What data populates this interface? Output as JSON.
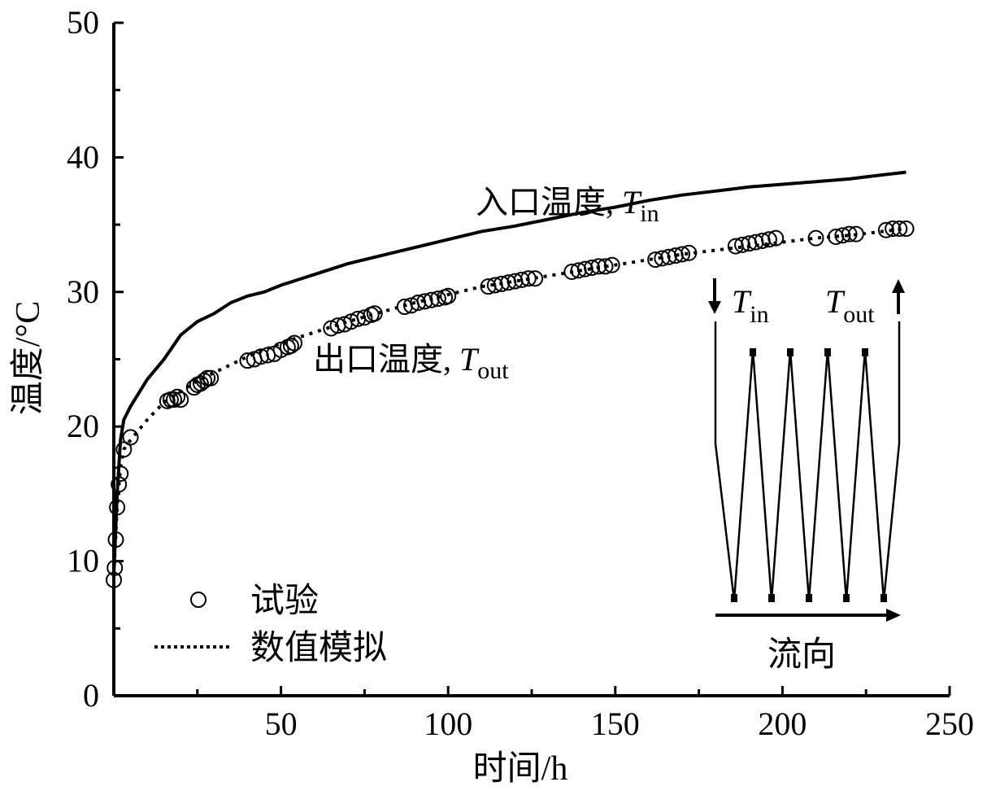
{
  "chart_data": {
    "type": "line",
    "xlabel": "时间/h",
    "ylabel": "温度/°C",
    "xlim": [
      0,
      250
    ],
    "ylim": [
      0,
      50
    ],
    "xticks": [
      "50",
      "100",
      "150",
      "200",
      "250"
    ],
    "yticks": [
      "0",
      "10",
      "20",
      "30",
      "40",
      "50"
    ],
    "grid": false,
    "legend": {
      "position": "bottom-left",
      "entries": [
        "试验",
        "数值模拟"
      ]
    },
    "annotations": {
      "inlet": {
        "text": "入口温度, ",
        "var": "T",
        "sub": "in"
      },
      "outlet": {
        "text": "出口温度, ",
        "var": "T",
        "sub": "out"
      }
    },
    "inset": {
      "label_in_var": "T",
      "label_in_sub": "in",
      "label_out_var": "T",
      "label_out_sub": "out",
      "flow_label": "流向"
    },
    "series": [
      {
        "name": "入口温度",
        "style": "solid",
        "x": [
          0,
          1,
          2,
          3,
          5,
          10,
          15,
          20,
          25,
          30,
          35,
          40,
          45,
          50,
          60,
          70,
          80,
          90,
          100,
          110,
          120,
          130,
          140,
          150,
          160,
          170,
          180,
          190,
          200,
          210,
          220,
          230,
          237
        ],
        "y": [
          9,
          15,
          19,
          20.5,
          21.5,
          23.5,
          25,
          26.8,
          27.8,
          28.4,
          29.2,
          29.7,
          30,
          30.5,
          31.3,
          32.1,
          32.7,
          33.3,
          33.9,
          34.5,
          34.9,
          35.4,
          35.9,
          36.3,
          36.8,
          37.2,
          37.5,
          37.8,
          38,
          38.2,
          38.4,
          38.7,
          38.9
        ]
      },
      {
        "name": "出口温度",
        "style": "dotted",
        "x": [
          0,
          1,
          2,
          3,
          5,
          10,
          15,
          20,
          25,
          30,
          35,
          40,
          45,
          50,
          60,
          70,
          80,
          90,
          100,
          110,
          120,
          130,
          140,
          150,
          160,
          170,
          180,
          190,
          200,
          210,
          220,
          230,
          237
        ],
        "y": [
          9,
          14,
          17,
          18.3,
          19,
          20.5,
          21.8,
          22.6,
          23.4,
          24,
          24.6,
          25.2,
          25.7,
          26.2,
          27,
          27.8,
          28.5,
          29.2,
          29.8,
          30.4,
          30.8,
          31.2,
          31.6,
          32,
          32.4,
          32.8,
          33.1,
          33.4,
          33.7,
          34,
          34.2,
          34.5,
          34.7
        ]
      },
      {
        "name": "试验",
        "style": "markers",
        "x": [
          0,
          0.3,
          0.6,
          1,
          1.5,
          2,
          3,
          5,
          16,
          17,
          18,
          19,
          20,
          24,
          25,
          26,
          27,
          28,
          29,
          40,
          42,
          44,
          46,
          48,
          50,
          52,
          53,
          54,
          65,
          67,
          69,
          71,
          73,
          75,
          77,
          78,
          87,
          89,
          91,
          93,
          95,
          97,
          99,
          100,
          112,
          114,
          116,
          118,
          120,
          122,
          124,
          126,
          137,
          139,
          141,
          143,
          145,
          147,
          149,
          162,
          164,
          166,
          168,
          170,
          172,
          186,
          188,
          190,
          192,
          194,
          196,
          198,
          210,
          216,
          218,
          220,
          222,
          231,
          233,
          235,
          237
        ],
        "y": [
          8.6,
          9.5,
          11.6,
          14,
          15.7,
          16.5,
          18.3,
          19.2,
          21.9,
          22.0,
          22.0,
          22.2,
          22.0,
          22.9,
          23.1,
          23.2,
          23.4,
          23.6,
          23.6,
          24.9,
          25.0,
          25.2,
          25.3,
          25.4,
          25.7,
          25.9,
          26.0,
          26.2,
          27.3,
          27.5,
          27.6,
          27.8,
          28.0,
          28.1,
          28.3,
          28.4,
          28.9,
          29.0,
          29.2,
          29.3,
          29.4,
          29.5,
          29.6,
          29.7,
          30.4,
          30.5,
          30.6,
          30.7,
          30.8,
          30.9,
          31.0,
          31.0,
          31.5,
          31.6,
          31.7,
          31.8,
          31.9,
          31.9,
          32.0,
          32.4,
          32.5,
          32.6,
          32.7,
          32.8,
          32.9,
          33.4,
          33.5,
          33.6,
          33.7,
          33.8,
          33.9,
          34.0,
          34.0,
          34.1,
          34.2,
          34.3,
          34.3,
          34.6,
          34.7,
          34.7,
          34.7
        ]
      }
    ]
  }
}
